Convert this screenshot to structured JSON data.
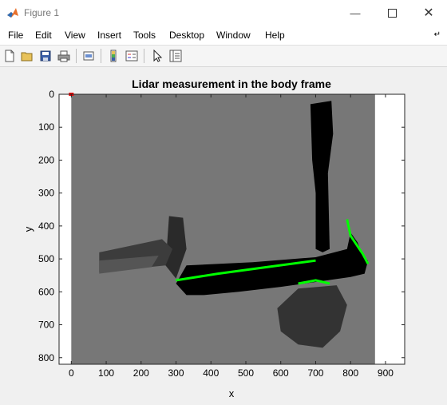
{
  "window": {
    "title": "Figure 1",
    "minimize_icon": "minimize-icon",
    "maximize_icon": "maximize-icon",
    "close_icon": "close-icon"
  },
  "menu": [
    "File",
    "Edit",
    "View",
    "Insert",
    "Tools",
    "Desktop",
    "Window",
    "Help"
  ],
  "toolbar": [
    "new-figure-icon",
    "open-file-icon",
    "save-icon",
    "print-icon",
    "print-preview-icon",
    "link-colorbar-icon",
    "insert-legend-icon",
    "pointer-icon",
    "property-inspector-icon"
  ],
  "chart_data": {
    "type": "image",
    "title": "Lidar measurement in the body frame",
    "xlabel": "x",
    "ylabel": "y",
    "xlim": [
      -35,
      955
    ],
    "ylim": [
      820,
      0
    ],
    "xticks": [
      0,
      100,
      200,
      300,
      400,
      500,
      600,
      700,
      800,
      900
    ],
    "yticks": [
      0,
      100,
      200,
      300,
      400,
      500,
      600,
      700,
      800
    ],
    "image_extent": {
      "x": [
        0,
        870
      ],
      "y": [
        0,
        820
      ]
    },
    "colors": {
      "background": "#777777",
      "walls": "#000000",
      "highlight": "#00ff00",
      "marker": "#ff0000"
    }
  }
}
